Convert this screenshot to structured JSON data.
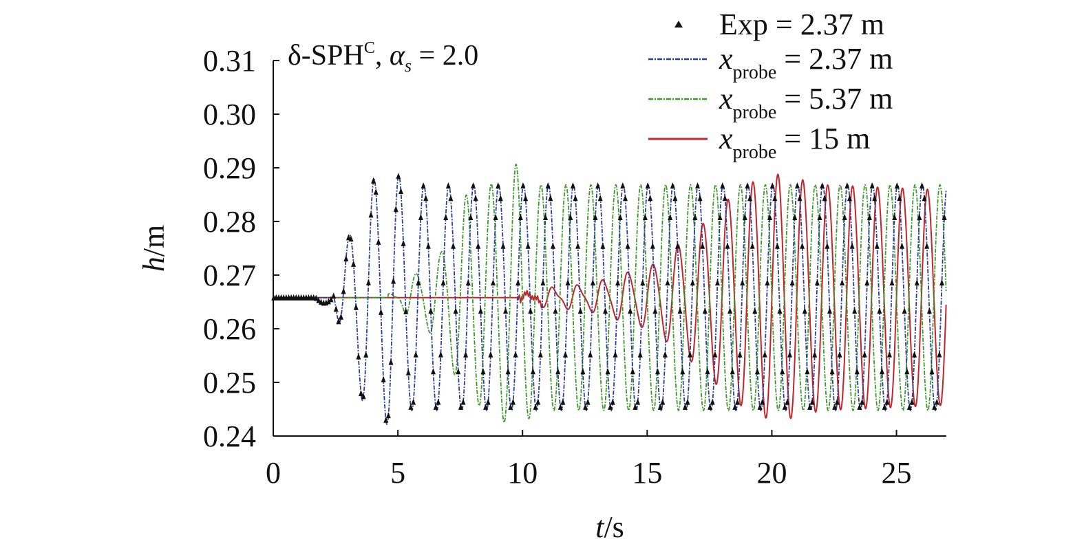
{
  "chart_data": {
    "type": "line",
    "title_main": "δ-SPH",
    "title_sup": "C",
    "title_alpha": "α",
    "title_alpha_sub": "s",
    "title_value": " = 2.0",
    "xlabel_var": "t",
    "xlabel_unit": "/s",
    "ylabel_var": "h",
    "ylabel_unit": "/m",
    "xlim": [
      0,
      27
    ],
    "ylim": [
      0.24,
      0.31
    ],
    "xticks": [
      0,
      5,
      10,
      15,
      20,
      25
    ],
    "yticks": [
      "0.24",
      "0.25",
      "0.26",
      "0.27",
      "0.28",
      "0.29",
      "0.30",
      "0.31"
    ],
    "legend_position": "top-right",
    "legend": [
      {
        "var": "Exp",
        "sub": "",
        "value": " = 2.37 m",
        "style": "markers",
        "color": "#111111"
      },
      {
        "var": "x",
        "sub": "probe",
        "value": " = 2.37 m",
        "style": "dashdot",
        "color": "#2b3f9a"
      },
      {
        "var": "x",
        "sub": "probe",
        "value": " = 5.37 m",
        "style": "dashdot",
        "color": "#3a9a2a"
      },
      {
        "var": "x",
        "sub": "probe",
        "value": " = 15 m",
        "style": "solid",
        "color": "#c0262b"
      }
    ],
    "series_params": {
      "period_s": 1.0,
      "still_level": 0.2658,
      "envelope": [
        {
          "arrival_t": 2.4,
          "ramp_points": [
            [
              2.4,
              0.0
            ],
            [
              2.8,
              0.008
            ],
            [
              3.7,
              0.021
            ],
            [
              4.7,
              0.024
            ],
            [
              5.5,
              0.021
            ],
            [
              6.5,
              0.021
            ]
          ],
          "steady_amp": 0.021,
          "phase_t": 2.8
        },
        {
          "arrival_t": 4.6,
          "ramp_points": [
            [
              4.6,
              0.0
            ],
            [
              5.5,
              0.0035
            ],
            [
              6.7,
              0.008
            ],
            [
              7.7,
              0.019
            ],
            [
              8.7,
              0.021
            ],
            [
              9.7,
              0.025
            ],
            [
              10.6,
              0.021
            ]
          ],
          "steady_amp": 0.021,
          "phase_t": 5.5
        },
        {
          "arrival_t": 9.9,
          "ramp_points": [
            [
              9.9,
              0.0
            ],
            [
              10.8,
              0.0015
            ],
            [
              12.0,
              0.002
            ],
            [
              12.8,
              0.0025
            ],
            [
              13.8,
              0.004
            ],
            [
              15.2,
              0.006
            ],
            [
              16.3,
              0.01
            ],
            [
              17.3,
              0.014
            ],
            [
              18.4,
              0.019
            ],
            [
              19.4,
              0.022
            ],
            [
              20.3,
              0.023
            ],
            [
              22.0,
              0.021
            ],
            [
              27.0,
              0.02
            ]
          ],
          "steady_amp": 0.02,
          "phase_t": 11.0
        }
      ],
      "exp_markers_per_period": 10
    }
  }
}
